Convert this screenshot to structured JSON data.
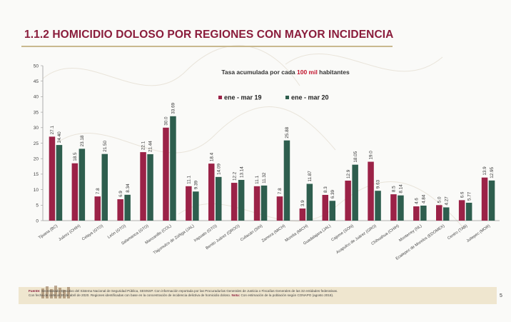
{
  "slide": {
    "title": "1.1.2 HOMICIDIO DOLOSO POR REGIONES CON MAYOR INCIDENCIA",
    "page_number": "5",
    "footer": {
      "fuente_label": "Fuente:",
      "line1": "Secretariado Ejecutivo del Sistema Nacional de Seguridad Pública, SESNSP. Con información reportada por las Procuradurías Generales de Justicia o Fiscalías Generales de las 32 entidades federativas.",
      "line2": "Con fecha de corte al 20 de abril de 2020. Regiones identificadas con base en la concentración de incidencia delictiva de homicidio doloso.",
      "nota_label": "Nota:",
      "nota_text": "Con estimación de la población según CONAPO (agosto 2018)."
    },
    "colors": {
      "title": "#8a1c3b",
      "accent_line": "#c9b98f",
      "footer_band": "#efe6cf"
    }
  },
  "chart_data": {
    "type": "bar",
    "subtitle_prefix": "Tasa acumulada por cada ",
    "subtitle_highlight": "100 mil",
    "subtitle_suffix": " habitantes",
    "ylim": [
      0,
      50
    ],
    "yticks": [
      "0",
      "5",
      "10",
      "15",
      "20",
      "25",
      "30",
      "35",
      "40",
      "45",
      "50"
    ],
    "grid": false,
    "legend_position": "top-center",
    "categories": [
      "Tijuana (BC)",
      "Juárez (CHIH)",
      "Celaya (GTO)",
      "León (GTO)",
      "Salamanca (GTO)",
      "Manzanillo (COL)",
      "Tlajomulco de Zúñiga (JAL)",
      "Irapuato (GTO)",
      "Benito Juárez (QROO)",
      "Culiacán (SIN)",
      "Zamora (MICH)",
      "Morelia (MICH)",
      "Guadalajara (JAL)",
      "Cajeme (SON)",
      "Acapulco de Juárez (GRO)",
      "Chihuahua (CHIH)",
      "Monterrey (NL)",
      "Ecatepec de Morelos (EDOMEX)",
      "Centro (TAB)",
      "Juitepec (MOR)"
    ],
    "series": [
      {
        "name": "ene - mar 19",
        "color": "#9b2247",
        "values": [
          27.1,
          18.5,
          7.8,
          6.9,
          22.1,
          30.0,
          11.1,
          18.4,
          12.2,
          11.1,
          7.8,
          3.9,
          8.3,
          12.9,
          19.0,
          8.5,
          4.6,
          5.0,
          6.6,
          13.9
        ],
        "labels": [
          "27.1",
          "18.5",
          "7.8",
          "6.9",
          "22.1",
          "30.0",
          "11.1",
          "18.4",
          "12.2",
          "11.1",
          "7.8",
          "3.9",
          "8.3",
          "12.9",
          "19.0",
          "8.5",
          "4.6",
          "5.0",
          "6.6",
          "13.9"
        ]
      },
      {
        "name": "ene - mar 20",
        "color": "#2e5e4e",
        "values": [
          24.4,
          23.18,
          21.5,
          8.34,
          21.44,
          33.69,
          9.39,
          14.09,
          13.14,
          11.32,
          25.88,
          11.87,
          6.39,
          18.05,
          9.63,
          8.14,
          4.84,
          4.27,
          5.77,
          12.95
        ],
        "labels": [
          "24.40",
          "23.18",
          "21.50",
          "8.34",
          "21.44",
          "33.69",
          "9.39",
          "14.09",
          "13.14",
          "11.32",
          "25.88",
          "11.87",
          "6.39",
          "18.05",
          "9.63",
          "8.14",
          "4.84",
          "4.27",
          "5.77",
          "12.95"
        ]
      }
    ]
  }
}
